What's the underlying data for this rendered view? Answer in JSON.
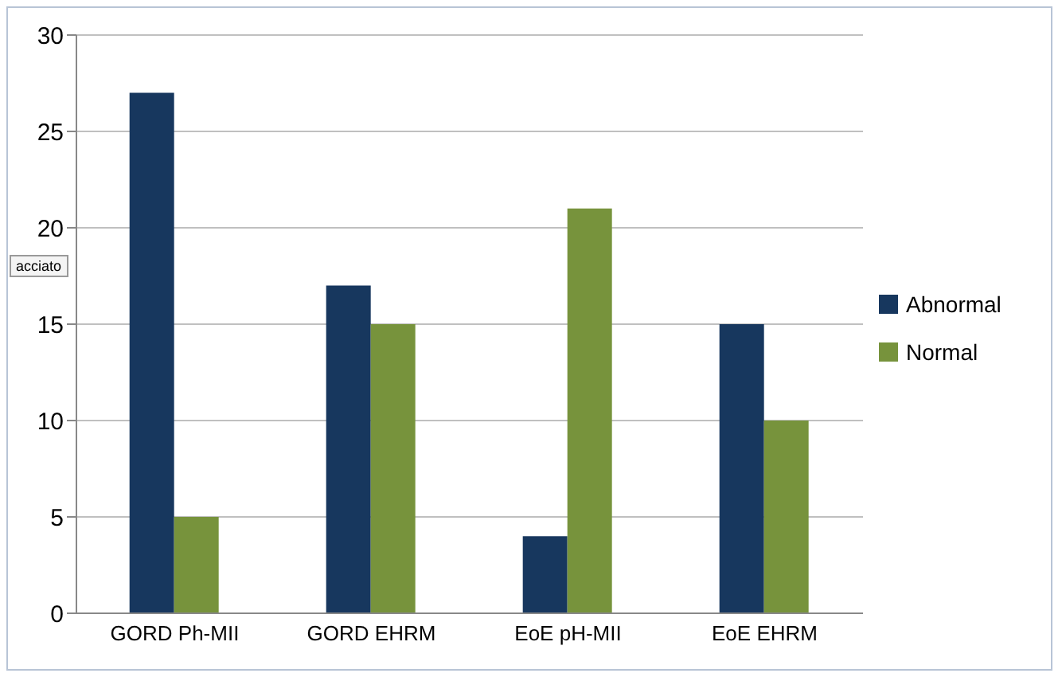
{
  "chart_data": {
    "type": "bar",
    "categories": [
      "GORD Ph-MII",
      "GORD EHRM",
      "EoE pH-MII",
      "EoE  EHRM"
    ],
    "series": [
      {
        "name": "Abnormal",
        "color": "#17375e",
        "values": [
          27,
          17,
          4,
          15
        ]
      },
      {
        "name": "Normal",
        "color": "#77933c",
        "values": [
          5,
          15,
          21,
          10
        ]
      }
    ],
    "ylim": [
      0,
      30
    ],
    "yticks": [
      0,
      5,
      10,
      15,
      20,
      25,
      30
    ],
    "grid": "y",
    "legend": "right",
    "annotations": [
      "acciato"
    ]
  }
}
